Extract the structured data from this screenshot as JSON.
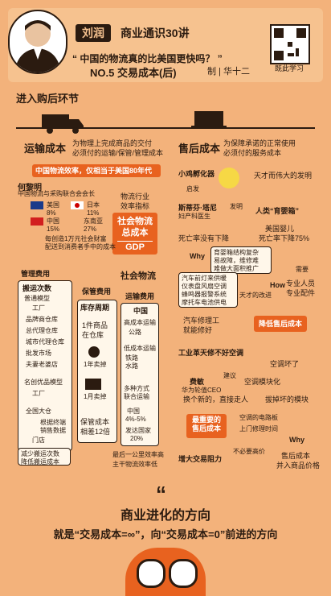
{
  "header": {
    "name": "刘润",
    "series": "商业通识30讲",
    "question": "中国的物流真的比美国更快吗？",
    "lesson": "NO.5 交易成本(后)",
    "byline": "制 | 华十二",
    "qr_label": "既此学习"
  },
  "labels": {
    "after_purchase": "进入购后环节",
    "transport_cost": "运输成本",
    "transport_desc_1": "为物理上完成商品的交付",
    "transport_desc_2": "必须付的运输/保管/管理成本",
    "china_eff": "中国物流效率，仅相当于美国80年代",
    "person": "何黎明",
    "person_title": "中国物流与采购联合会会长",
    "us": "美国",
    "us_pct": "8%",
    "jp": "日本",
    "jp_pct": "11%",
    "cn": "中国",
    "cn_pct": "15%",
    "sea": "东南亚",
    "sea_pct": "27%",
    "logistics_eff_1": "物流行业",
    "logistics_eff_2": "效率指标",
    "social_cost_1": "社会物流",
    "social_cost_2": "总成本",
    "gdp": "GDP",
    "per_10k_1": "每创造1万元社会财富",
    "per_10k_2": "配送到消费者手中的成本",
    "social_logistics": "社会物流",
    "mgmt_cost": "管理费用",
    "storage_cost": "保管费用",
    "transport_fee": "运输费用",
    "move_times": "搬运次数",
    "ordinary": "普通模型",
    "factory": "工厂",
    "brand_wh": "品牌商仓库",
    "gen_agent": "总代理仓库",
    "city_agent": "城市代理仓库",
    "wholesale": "批发市场",
    "shop": "夫妻老婆店",
    "mingchuang": "名创优品模型",
    "national_wh": "全国大仓",
    "auto_settle": "根据终端销售数据",
    "store": "门店",
    "reduce_moves_1": "减少搬运次数",
    "reduce_moves_2": "降低搬运成本",
    "inventory": "库存周期",
    "one_item_1": "1件商品",
    "one_item_2": "在仓库",
    "sold_1yr": "1年卖掉",
    "sold_1mo": "1月卖掉",
    "keep_cost_1": "保管成本",
    "keep_cost_2": "相差12倍",
    "china_h": "中国",
    "highway": "高成本运输",
    "highway_sub": "公路",
    "rail_low": "低成本运输",
    "rail_sub": "铁路 水路",
    "multi_1": "多种方式",
    "multi_2": "联合运输",
    "cn_pct2_1": "中国",
    "cn_pct2_2": "4%-5%",
    "dev_country_1": "发达国家",
    "dev_country_2": "20%",
    "last_mile_1": "最后一公里效率高",
    "last_mile_2": "主干物流效率低",
    "after_sales": "售后成本",
    "after_desc_1": "为保障承诺的正常使用",
    "after_desc_2": "必须付的服务成本",
    "incubator": "小鸡孵化器",
    "inspire": "启发",
    "invent": "发明",
    "tiancai": "天才而伟大的发明",
    "sith": "斯蒂芬·塔尼",
    "sith_title": "妇产科医生",
    "human_box": "人类“育婴箱”",
    "baby_us_1": "美国婴儿",
    "baby_us_2": "死亡率下降75%",
    "baby_fail": "死亡率没有下降",
    "why": "Why",
    "broken_1": "育婴箱结构复杂",
    "broken_2": "易故障，维修难",
    "broken_3": "难做大面积推广",
    "need": "需要",
    "pro_1": "专业人员",
    "pro_2": "专业配件",
    "how": "How",
    "car_1": "汽车前灯来供暖",
    "car_2": "仪表盘风扇空调",
    "car_3": "蜂鸣器报警系统",
    "car_4": "摩托车电池供电",
    "genius_improve": "天才的改进",
    "mechanic_1": "汽车修理工",
    "mechanic_2": "就能修好",
    "reduce_after": "降低售后成本",
    "industry": "工业革天修不好空调",
    "ac_broken": "空调坏了",
    "fei": "费敏",
    "fei_title": "华为轮值CEO",
    "suggest": "建议",
    "ac_module": "空调模块化",
    "replace": "换个新的，直接走人",
    "unplug": "拔掉坏的模块",
    "most_important_1": "最重要的",
    "most_important_2": "售后成本",
    "circuit": "空调的电路板",
    "repair_time": "上门修理时间",
    "why2": "Why",
    "no_high": "不必要高价",
    "after_cost_1": "售后成本",
    "after_cost_2": "并入商品价格",
    "increase_resist": "增大交易阻力",
    "footer_title": "商业进化的方向",
    "footer_sub": "就是“交易成本=∞”，向“交易成本=0”前进的方向"
  },
  "colors": {
    "accent": "#e8621f",
    "bg": "#f3b27b",
    "dark": "#2b1b10"
  }
}
